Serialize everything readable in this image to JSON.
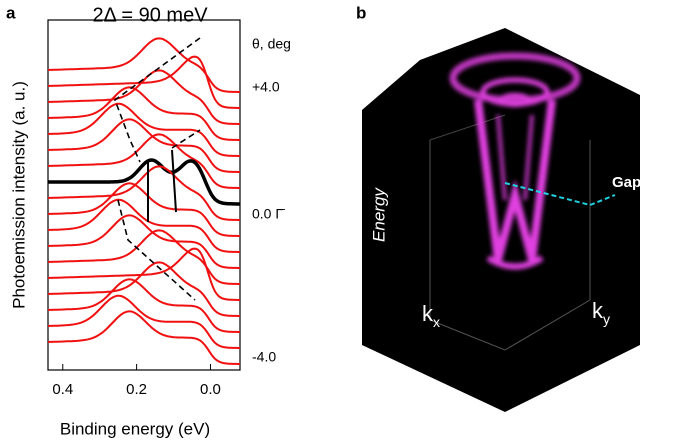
{
  "panel_a": {
    "label": "a",
    "title": "2Δ = 90 meV",
    "y_axis_label": "Photoemission intensity (a. u.)",
    "x_axis_label": "Binding energy (eV)",
    "xlim": [
      0.44,
      -0.08
    ],
    "xticks": [
      0.4,
      0.2,
      {
        "value": 0,
        "label": "0.0"
      }
    ],
    "angle_header": "θ, deg",
    "angle_labels": [
      "+4.0",
      "0.0 Γ̄",
      "-4.0"
    ]
  },
  "panel_b": {
    "label": "b",
    "energy_label": "Energy",
    "gap_label": "Gap",
    "kx": {
      "main": "k",
      "sub": "x"
    },
    "ky": {
      "main": "k",
      "sub": "y"
    }
  }
}
